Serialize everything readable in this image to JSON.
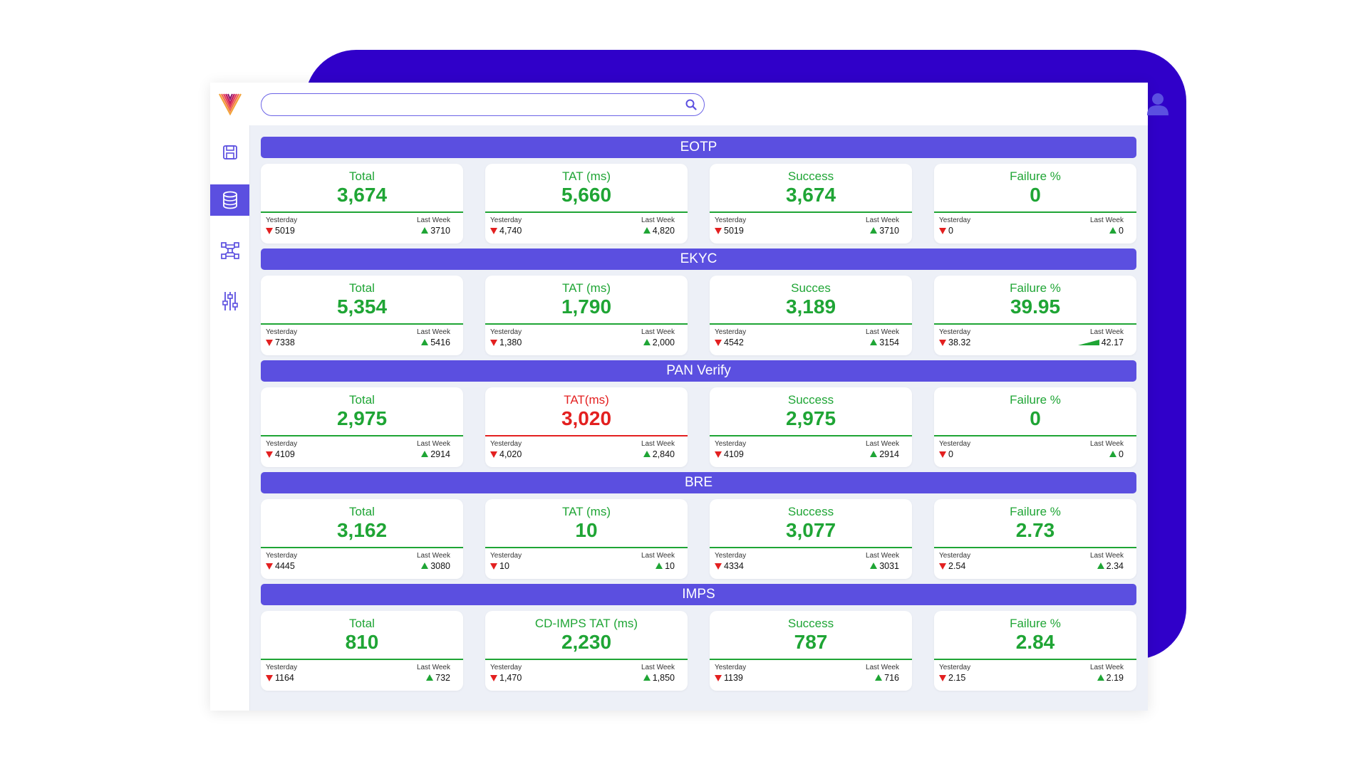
{
  "colors": {
    "backdrop": "#3000c9",
    "accent": "#5b4fe0",
    "good": "#1fa535",
    "bad": "#e32020"
  },
  "sidebar": {
    "logo_icon": "brand-logo-icon",
    "items": [
      {
        "name": "save-icon",
        "active": false
      },
      {
        "name": "database-icon",
        "active": true
      },
      {
        "name": "network-icon",
        "active": false
      },
      {
        "name": "sliders-icon",
        "active": false
      }
    ]
  },
  "search": {
    "value": "",
    "placeholder": "",
    "icon": "search-icon"
  },
  "user": {
    "icon": "user-avatar-icon"
  },
  "labels": {
    "yesterday": "Yesterday",
    "last_week": "Last Week"
  },
  "sections": [
    {
      "title": "EOTP",
      "cards": [
        {
          "title": "Total",
          "value": "3,674",
          "yesterday": "5019",
          "yesterday_trend": "down",
          "last_week": "3710",
          "last_week_trend": "up"
        },
        {
          "title": "TAT (ms)",
          "value": "5,660",
          "yesterday": "4,740",
          "yesterday_trend": "down",
          "last_week": "4,820",
          "last_week_trend": "up"
        },
        {
          "title": "Success",
          "value": "3,674",
          "yesterday": "5019",
          "yesterday_trend": "down",
          "last_week": "3710",
          "last_week_trend": "up"
        },
        {
          "title": "Failure %",
          "value": "0",
          "yesterday": "0",
          "yesterday_trend": "down",
          "last_week": "0",
          "last_week_trend": "up"
        }
      ]
    },
    {
      "title": "EKYC",
      "cards": [
        {
          "title": "Total",
          "value": "5,354",
          "yesterday": "7338",
          "yesterday_trend": "down",
          "last_week": "5416",
          "last_week_trend": "up"
        },
        {
          "title": "TAT (ms)",
          "value": "1,790",
          "yesterday": "1,380",
          "yesterday_trend": "down",
          "last_week": "2,000",
          "last_week_trend": "up"
        },
        {
          "title": "Succes",
          "value": "3,189",
          "yesterday": "4542",
          "yesterday_trend": "down",
          "last_week": "3154",
          "last_week_trend": "up"
        },
        {
          "title": "Failure %",
          "value": "39.95",
          "yesterday": "38.32",
          "yesterday_trend": "down",
          "last_week": "42.17",
          "last_week_trend": "up-wide"
        }
      ]
    },
    {
      "title": "PAN Verify",
      "cards": [
        {
          "title": "Total",
          "value": "2,975",
          "yesterday": "4109",
          "yesterday_trend": "down",
          "last_week": "2914",
          "last_week_trend": "up"
        },
        {
          "title": "TAT(ms)",
          "value": "3,020",
          "alert": true,
          "yesterday": "4,020",
          "yesterday_trend": "down",
          "last_week": "2,840",
          "last_week_trend": "up"
        },
        {
          "title": "Success",
          "value": "2,975",
          "yesterday": "4109",
          "yesterday_trend": "down",
          "last_week": "2914",
          "last_week_trend": "up"
        },
        {
          "title": "Failure %",
          "value": "0",
          "yesterday": "0",
          "yesterday_trend": "down",
          "last_week": "0",
          "last_week_trend": "up"
        }
      ]
    },
    {
      "title": "BRE",
      "cards": [
        {
          "title": "Total",
          "value": "3,162",
          "yesterday": "4445",
          "yesterday_trend": "down",
          "last_week": "3080",
          "last_week_trend": "up"
        },
        {
          "title": "TAT (ms)",
          "value": "10",
          "yesterday": "10",
          "yesterday_trend": "down",
          "last_week": "10",
          "last_week_trend": "up"
        },
        {
          "title": "Success",
          "value": "3,077",
          "yesterday": "4334",
          "yesterday_trend": "down",
          "last_week": "3031",
          "last_week_trend": "up"
        },
        {
          "title": "Failure %",
          "value": "2.73",
          "yesterday": "2.54",
          "yesterday_trend": "down",
          "last_week": "2.34",
          "last_week_trend": "up"
        }
      ]
    },
    {
      "title": "IMPS",
      "cards": [
        {
          "title": "Total",
          "value": "810",
          "yesterday": "1164",
          "yesterday_trend": "down",
          "last_week": "732",
          "last_week_trend": "up"
        },
        {
          "title": "CD-IMPS TAT (ms)",
          "value": "2,230",
          "yesterday": "1,470",
          "yesterday_trend": "down",
          "last_week": "1,850",
          "last_week_trend": "up"
        },
        {
          "title": "Success",
          "value": "787",
          "yesterday": "1139",
          "yesterday_trend": "down",
          "last_week": "716",
          "last_week_trend": "up"
        },
        {
          "title": "Failure %",
          "value": "2.84",
          "yesterday": "2.15",
          "yesterday_trend": "down",
          "last_week": "2.19",
          "last_week_trend": "up"
        }
      ]
    }
  ]
}
